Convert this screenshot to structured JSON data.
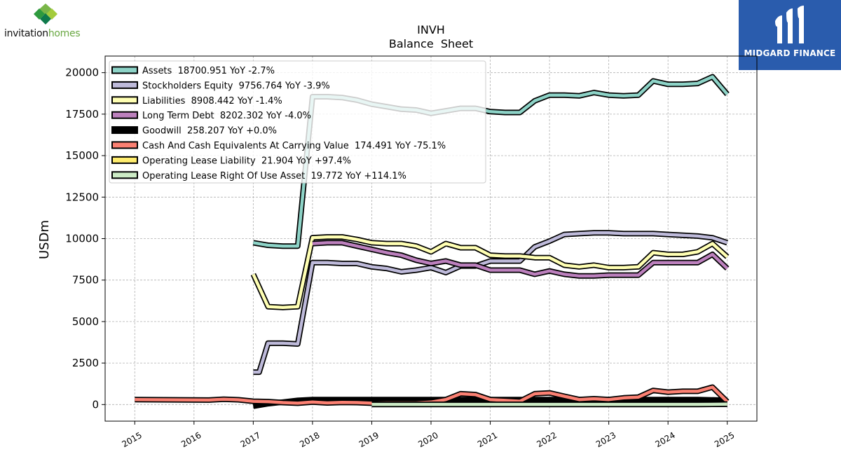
{
  "branding": {
    "left_logo_text_part1": "invitation",
    "left_logo_text_part2": "homes",
    "right_logo_text": "MIDGARD FINANCE"
  },
  "chart_data": {
    "type": "line",
    "title": "INVH",
    "subtitle": "Balance  Sheet",
    "ylabel": "USDm",
    "xlabel": "",
    "xlim": [
      2014.5,
      2025.5
    ],
    "ylim": [
      -1000,
      21000
    ],
    "grid": true,
    "legend_position": "top-left",
    "x_ticks": [
      2015,
      2016,
      2017,
      2018,
      2019,
      2020,
      2021,
      2022,
      2023,
      2024,
      2025
    ],
    "y_ticks": [
      0,
      2500,
      5000,
      7500,
      10000,
      12500,
      15000,
      17500,
      20000
    ],
    "series": [
      {
        "name": "Assets  18700.951 YoY -2.7%",
        "color": "#8dd3c7",
        "points": [
          [
            2017.0,
            9750
          ],
          [
            2017.25,
            9600
          ],
          [
            2017.5,
            9550
          ],
          [
            2017.75,
            9550
          ],
          [
            2018.0,
            18550
          ],
          [
            2018.25,
            18550
          ],
          [
            2018.5,
            18500
          ],
          [
            2018.75,
            18350
          ],
          [
            2019.0,
            18100
          ],
          [
            2019.25,
            17950
          ],
          [
            2019.5,
            17800
          ],
          [
            2019.75,
            17750
          ],
          [
            2020.0,
            17550
          ],
          [
            2020.25,
            17700
          ],
          [
            2020.5,
            17850
          ],
          [
            2020.75,
            17850
          ],
          [
            2021.0,
            17650
          ],
          [
            2021.25,
            17600
          ],
          [
            2021.5,
            17600
          ],
          [
            2021.75,
            18300
          ],
          [
            2022.0,
            18650
          ],
          [
            2022.25,
            18650
          ],
          [
            2022.5,
            18600
          ],
          [
            2022.75,
            18800
          ],
          [
            2023.0,
            18650
          ],
          [
            2023.25,
            18600
          ],
          [
            2023.5,
            18650
          ],
          [
            2023.75,
            19500
          ],
          [
            2024.0,
            19300
          ],
          [
            2024.25,
            19300
          ],
          [
            2024.5,
            19350
          ],
          [
            2024.75,
            19750
          ],
          [
            2025.0,
            18700
          ]
        ]
      },
      {
        "name": "Stockholders Equity  9756.764 YoY -3.9%",
        "color": "#bebada",
        "points": [
          [
            2017.0,
            1950
          ],
          [
            2017.1,
            1950
          ],
          [
            2017.25,
            3700
          ],
          [
            2017.5,
            3700
          ],
          [
            2017.75,
            3650
          ],
          [
            2018.0,
            8550
          ],
          [
            2018.25,
            8550
          ],
          [
            2018.5,
            8500
          ],
          [
            2018.75,
            8500
          ],
          [
            2019.0,
            8300
          ],
          [
            2019.25,
            8200
          ],
          [
            2019.5,
            8000
          ],
          [
            2019.75,
            8100
          ],
          [
            2020.0,
            8250
          ],
          [
            2020.25,
            7950
          ],
          [
            2020.5,
            8350
          ],
          [
            2020.75,
            8350
          ],
          [
            2021.0,
            8650
          ],
          [
            2021.25,
            8650
          ],
          [
            2021.5,
            8650
          ],
          [
            2021.75,
            9500
          ],
          [
            2022.0,
            9850
          ],
          [
            2022.25,
            10250
          ],
          [
            2022.5,
            10300
          ],
          [
            2022.75,
            10350
          ],
          [
            2023.0,
            10350
          ],
          [
            2023.25,
            10300
          ],
          [
            2023.5,
            10300
          ],
          [
            2023.75,
            10300
          ],
          [
            2024.0,
            10250
          ],
          [
            2024.25,
            10200
          ],
          [
            2024.5,
            10150
          ],
          [
            2024.75,
            10050
          ],
          [
            2025.0,
            9750
          ]
        ]
      },
      {
        "name": "Liabilities  8908.442 YoY -1.4%",
        "color": "#ffffb3",
        "points": [
          [
            2017.0,
            7850
          ],
          [
            2017.25,
            5900
          ],
          [
            2017.5,
            5850
          ],
          [
            2017.75,
            5900
          ],
          [
            2018.0,
            10050
          ],
          [
            2018.25,
            10100
          ],
          [
            2018.5,
            10100
          ],
          [
            2018.75,
            9950
          ],
          [
            2019.0,
            9750
          ],
          [
            2019.25,
            9700
          ],
          [
            2019.5,
            9700
          ],
          [
            2019.75,
            9550
          ],
          [
            2020.0,
            9200
          ],
          [
            2020.25,
            9700
          ],
          [
            2020.5,
            9450
          ],
          [
            2020.75,
            9450
          ],
          [
            2021.0,
            9000
          ],
          [
            2021.25,
            8950
          ],
          [
            2021.5,
            8950
          ],
          [
            2021.75,
            8850
          ],
          [
            2022.0,
            8850
          ],
          [
            2022.25,
            8400
          ],
          [
            2022.5,
            8300
          ],
          [
            2022.75,
            8400
          ],
          [
            2023.0,
            8250
          ],
          [
            2023.25,
            8250
          ],
          [
            2023.5,
            8300
          ],
          [
            2023.75,
            9150
          ],
          [
            2024.0,
            9050
          ],
          [
            2024.25,
            9050
          ],
          [
            2024.5,
            9200
          ],
          [
            2024.75,
            9700
          ],
          [
            2025.0,
            8900
          ]
        ]
      },
      {
        "name": "Long Term Debt  8202.302 YoY -4.0%",
        "color": "#bc80bd",
        "points": [
          [
            2018.0,
            9700
          ],
          [
            2018.25,
            9750
          ],
          [
            2018.5,
            9750
          ],
          [
            2018.75,
            9550
          ],
          [
            2019.0,
            9350
          ],
          [
            2019.25,
            9150
          ],
          [
            2019.5,
            9000
          ],
          [
            2019.75,
            8700
          ],
          [
            2020.0,
            8500
          ],
          [
            2020.25,
            8650
          ],
          [
            2020.5,
            8400
          ],
          [
            2020.75,
            8400
          ],
          [
            2021.0,
            8100
          ],
          [
            2021.25,
            8100
          ],
          [
            2021.5,
            8100
          ],
          [
            2021.75,
            7850
          ],
          [
            2022.0,
            8050
          ],
          [
            2022.25,
            7850
          ],
          [
            2022.5,
            7750
          ],
          [
            2022.75,
            7750
          ],
          [
            2023.0,
            7800
          ],
          [
            2023.25,
            7800
          ],
          [
            2023.5,
            7800
          ],
          [
            2023.75,
            8550
          ],
          [
            2024.0,
            8550
          ],
          [
            2024.25,
            8550
          ],
          [
            2024.5,
            8550
          ],
          [
            2024.75,
            9050
          ],
          [
            2025.0,
            8200
          ]
        ]
      },
      {
        "name": "Goodwill  258.207 YoY +0.0%",
        "color": "#000000",
        "points": [
          [
            2017.0,
            -100
          ],
          [
            2017.25,
            50
          ],
          [
            2017.5,
            150
          ],
          [
            2017.75,
            250
          ],
          [
            2018.0,
            300
          ],
          [
            2018.5,
            300
          ],
          [
            2019.0,
            300
          ],
          [
            2019.5,
            300
          ],
          [
            2020.0,
            300
          ],
          [
            2020.5,
            300
          ],
          [
            2021.0,
            300
          ],
          [
            2021.5,
            300
          ],
          [
            2022.0,
            300
          ],
          [
            2022.5,
            300
          ],
          [
            2023.0,
            300
          ],
          [
            2023.5,
            300
          ],
          [
            2024.0,
            300
          ],
          [
            2024.5,
            300
          ],
          [
            2025.0,
            258
          ]
        ]
      },
      {
        "name": "Cash And Cash Equivalents At Carrying Value  174.491 YoY -75.1%",
        "color": "#fb8072",
        "points": [
          [
            2015.0,
            300
          ],
          [
            2015.5,
            290
          ],
          [
            2016.0,
            280
          ],
          [
            2016.25,
            270
          ],
          [
            2016.5,
            320
          ],
          [
            2016.75,
            290
          ],
          [
            2017.0,
            200
          ],
          [
            2017.25,
            180
          ],
          [
            2017.5,
            120
          ],
          [
            2017.75,
            80
          ],
          [
            2018.0,
            150
          ],
          [
            2018.25,
            100
          ],
          [
            2018.5,
            130
          ],
          [
            2018.75,
            120
          ],
          [
            2019.0,
            80
          ],
          [
            2019.25,
            100
          ],
          [
            2019.5,
            100
          ],
          [
            2019.75,
            100
          ],
          [
            2020.0,
            150
          ],
          [
            2020.25,
            300
          ],
          [
            2020.5,
            650
          ],
          [
            2020.75,
            600
          ],
          [
            2021.0,
            300
          ],
          [
            2021.25,
            250
          ],
          [
            2021.5,
            200
          ],
          [
            2021.75,
            650
          ],
          [
            2022.0,
            700
          ],
          [
            2022.25,
            500
          ],
          [
            2022.5,
            300
          ],
          [
            2022.75,
            350
          ],
          [
            2023.0,
            300
          ],
          [
            2023.25,
            400
          ],
          [
            2023.5,
            450
          ],
          [
            2023.75,
            850
          ],
          [
            2024.0,
            750
          ],
          [
            2024.25,
            800
          ],
          [
            2024.5,
            800
          ],
          [
            2024.75,
            1050
          ],
          [
            2025.0,
            174
          ]
        ]
      },
      {
        "name": "Operating Lease Liability  21.904 YoY +97.4%",
        "color": "#ffed6f",
        "points": [
          [
            2019.0,
            10
          ],
          [
            2019.5,
            10
          ],
          [
            2020.0,
            11
          ],
          [
            2020.5,
            11
          ],
          [
            2021.0,
            11
          ],
          [
            2021.5,
            11
          ],
          [
            2022.0,
            11
          ],
          [
            2022.5,
            11
          ],
          [
            2023.0,
            11
          ],
          [
            2023.5,
            11
          ],
          [
            2024.0,
            11
          ],
          [
            2024.5,
            11
          ],
          [
            2025.0,
            22
          ]
        ]
      },
      {
        "name": "Operating Lease Right Of Use Asset  19.772 YoY +114.1%",
        "color": "#ccebc5",
        "points": [
          [
            2019.0,
            10
          ],
          [
            2019.5,
            10
          ],
          [
            2020.0,
            10
          ],
          [
            2020.5,
            10
          ],
          [
            2021.0,
            10
          ],
          [
            2021.5,
            10
          ],
          [
            2022.0,
            10
          ],
          [
            2022.5,
            10
          ],
          [
            2023.0,
            10
          ],
          [
            2023.5,
            10
          ],
          [
            2024.0,
            10
          ],
          [
            2024.5,
            10
          ],
          [
            2025.0,
            20
          ]
        ]
      }
    ]
  }
}
